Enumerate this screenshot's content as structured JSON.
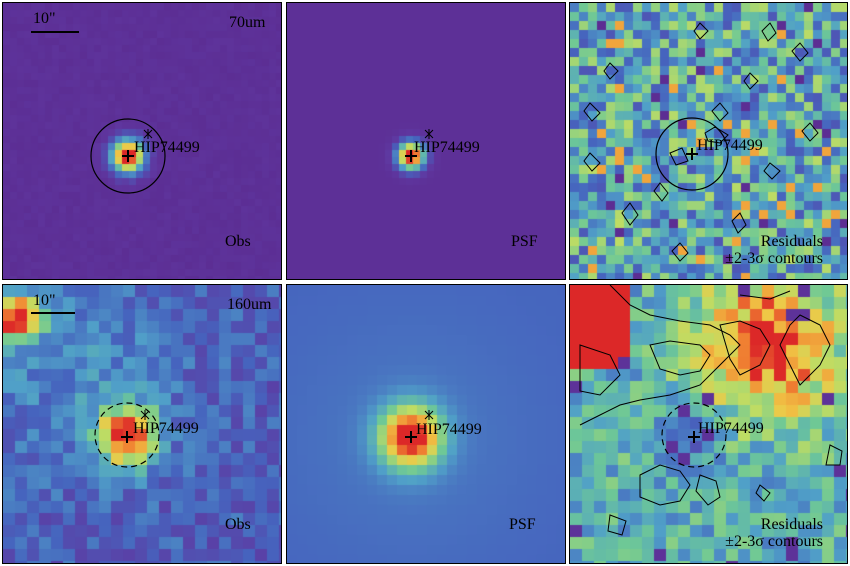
{
  "panels": [
    {
      "id": "r1c1",
      "scale_label": "10\"",
      "band_label": "70um",
      "target_label": "HIP74499",
      "corner_label": "Obs"
    },
    {
      "id": "r1c2",
      "target_label": "HIP74499",
      "corner_label": "PSF"
    },
    {
      "id": "r1c3",
      "target_label": "HIP74499",
      "corner_line1": "Residuals",
      "corner_line2": "±2-3σ contours"
    },
    {
      "id": "r2c1",
      "scale_label": "10\"",
      "band_label": "160um",
      "target_label": "HIP74499",
      "corner_label": "Obs"
    },
    {
      "id": "r2c2",
      "target_label": "HIP74499",
      "corner_label": "PSF"
    },
    {
      "id": "r2c3",
      "target_label": "HIP74499",
      "corner_line1": "Residuals",
      "corner_line2": "±2-3σ contours"
    }
  ],
  "colors": {
    "background_purple": "#6a3c9a",
    "psf_blue": "#4a60b8",
    "peak_red": "#e0302a",
    "frame_black": "#000000"
  }
}
